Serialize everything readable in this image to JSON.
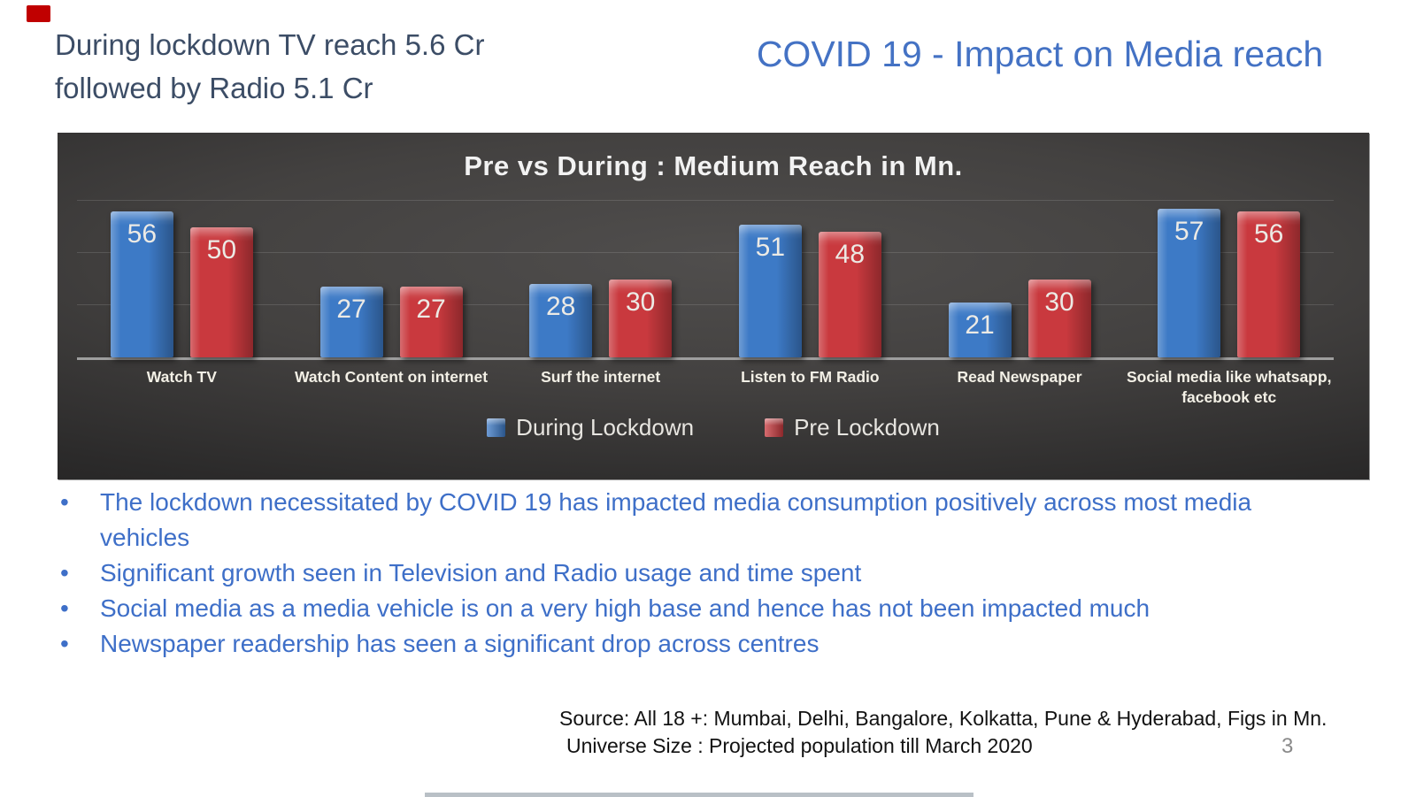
{
  "slide": {
    "top_left_note": {
      "line1": "During lockdown TV reach 5.6 Cr",
      "line2": "followed by Radio 5.1 Cr"
    },
    "title": "COVID 19 - Impact on Media reach",
    "bullets": [
      "The lockdown necessitated by COVID 19 has impacted media consumption positively across most media vehicles",
      "Significant growth seen in Television and Radio usage and time spent",
      "Social media as a media vehicle is on a very high base and hence has not been impacted much",
      "Newspaper readership has seen a significant drop across centres"
    ],
    "source_line1": "Source: All 18 +: Mumbai, Delhi, Bangalore, Kolkatta, Pune & Hyderabad, Figs in Mn.",
    "source_line2": "Universe Size : Projected population till March 2020",
    "page_number": "3"
  },
  "chart_data": {
    "type": "bar",
    "title": "Pre vs During : Medium Reach in Mn.",
    "categories": [
      "Watch TV",
      "Watch Content on internet",
      "Surf the internet",
      "Listen to FM Radio",
      "Read Newspaper",
      "Social media like whatsapp,\nfacebook etc"
    ],
    "series": [
      {
        "name": "During Lockdown",
        "color": "#3d7ac6",
        "values": [
          56,
          27,
          28,
          51,
          21,
          57
        ]
      },
      {
        "name": "Pre Lockdown",
        "color": "#c9393e",
        "values": [
          50,
          27,
          30,
          48,
          30,
          56
        ]
      }
    ],
    "xlabel": "",
    "ylabel": "",
    "ylim": [
      0,
      66
    ],
    "gridline_values": [
      20,
      40,
      60
    ],
    "grid": true,
    "legend_position": "bottom-center",
    "data_labels": true,
    "background": "dark"
  },
  "colors": {
    "title_blue": "#4472c4",
    "bullet_blue": "#3e6fc8",
    "note_slate": "#3c4d66",
    "chart_bg_center": "#504e4d",
    "chart_bg_edge": "#1f1e1e",
    "series_during_lockdown": "#3d7ac6",
    "series_pre_lockdown": "#c9393e",
    "axis_line": "#9e9e9e",
    "category_label": "#f3f0e6",
    "legend_text": "#e7e5e0",
    "source_text": "#121212",
    "page_number_gray": "#8a8a8a",
    "corner_mark_red": "#c00000"
  }
}
